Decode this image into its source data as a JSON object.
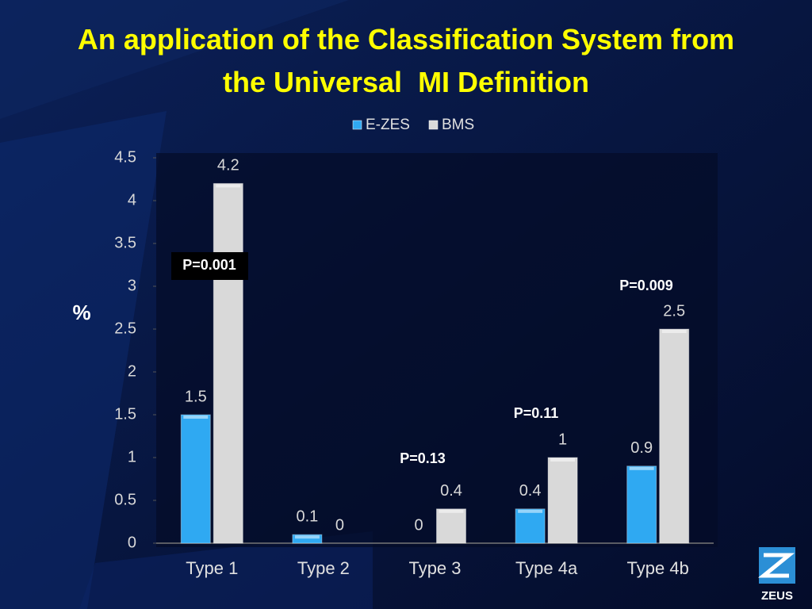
{
  "chart_data": {
    "type": "bar",
    "title": "An application of the Classification System from the Universal  MI Definition",
    "y_label": "%",
    "categories": [
      "Type 1",
      "Type 2",
      "Type 3",
      "Type 4a",
      "Type 4b"
    ],
    "series": [
      {
        "name": "E-ZES",
        "color": "#2fa9f2",
        "values": [
          1.5,
          0.1,
          0,
          0.4,
          0.9
        ]
      },
      {
        "name": "BMS",
        "color": "#d9d9d9",
        "values": [
          4.2,
          0,
          0.4,
          1,
          2.5
        ]
      }
    ],
    "ylim": [
      0,
      4.5
    ],
    "yticks": [
      0,
      0.5,
      1,
      1.5,
      2,
      2.5,
      3,
      3.5,
      4,
      4.5
    ],
    "legend": "top",
    "annotations": [
      "P=0.001",
      "P=0.13",
      "P=0.11",
      "P=0.009"
    ]
  },
  "logo": "ZEUS"
}
